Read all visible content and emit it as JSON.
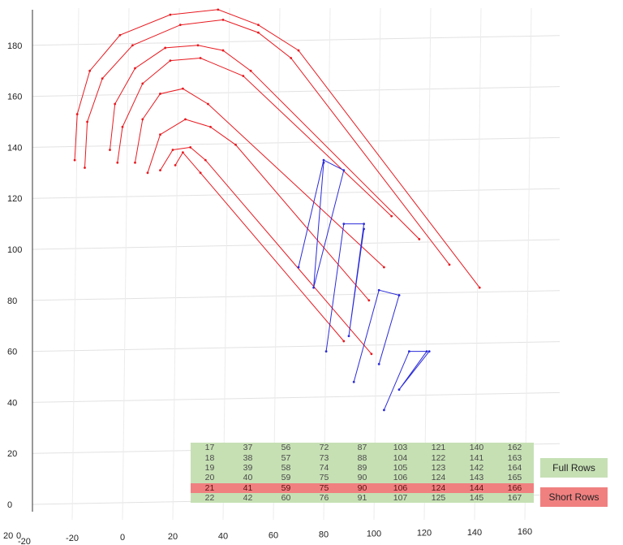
{
  "chart_data": {
    "type": "line",
    "y_ticks": [
      0,
      20,
      40,
      60,
      80,
      100,
      120,
      140,
      160,
      180
    ],
    "x_ticks": [
      -20,
      0,
      20,
      40,
      60,
      80,
      100,
      120,
      140,
      160
    ],
    "corner_labels": [
      "20",
      "0",
      "-20"
    ],
    "grid": true,
    "series": [
      {
        "color": "#e8191f",
        "points": [
          [
            -19,
            135
          ],
          [
            -18,
            153
          ],
          [
            -13,
            170
          ],
          [
            -1,
            184
          ],
          [
            19,
            192
          ],
          [
            38,
            194
          ],
          [
            54,
            188
          ],
          [
            70,
            178
          ],
          [
            142,
            85
          ]
        ]
      },
      {
        "color": "#e8191f",
        "points": [
          [
            -15,
            132
          ],
          [
            -14,
            150
          ],
          [
            -8,
            167
          ],
          [
            4,
            180
          ],
          [
            23,
            188
          ],
          [
            40,
            190
          ],
          [
            54,
            185
          ],
          [
            67,
            175
          ],
          [
            130,
            94
          ]
        ]
      },
      {
        "color": "#e8191f",
        "points": [
          [
            -5,
            139
          ],
          [
            -3,
            157
          ],
          [
            5,
            171
          ],
          [
            17,
            179
          ],
          [
            30,
            180
          ],
          [
            40,
            178
          ],
          [
            51,
            170
          ],
          [
            118,
            104
          ]
        ]
      },
      {
        "color": "#e8191f",
        "points": [
          [
            -2,
            134
          ],
          [
            0,
            148
          ],
          [
            8,
            165
          ],
          [
            19,
            174
          ],
          [
            31,
            175
          ],
          [
            48,
            168
          ],
          [
            107,
            113
          ]
        ]
      },
      {
        "color": "#e8191f",
        "points": [
          [
            5,
            134
          ],
          [
            8,
            151
          ],
          [
            15,
            161
          ],
          [
            24,
            163
          ],
          [
            34,
            157
          ],
          [
            104,
            93
          ]
        ]
      },
      {
        "color": "#e8191f",
        "points": [
          [
            10,
            130
          ],
          [
            15,
            145
          ],
          [
            25,
            151
          ],
          [
            35,
            148
          ],
          [
            45,
            141
          ],
          [
            98,
            80
          ]
        ]
      },
      {
        "color": "#e8191f",
        "points": [
          [
            15,
            131
          ],
          [
            20,
            139
          ],
          [
            27,
            140
          ],
          [
            33,
            135
          ],
          [
            99,
            59
          ]
        ]
      },
      {
        "color": "#e8191f",
        "points": [
          [
            21,
            133
          ],
          [
            24,
            138
          ],
          [
            31,
            130
          ],
          [
            88,
            64
          ]
        ]
      },
      {
        "color": "#2b2bd9",
        "points": [
          [
            70,
            93
          ],
          [
            80,
            135
          ],
          [
            88,
            131
          ],
          [
            76,
            85
          ],
          [
            80,
            134
          ]
        ]
      },
      {
        "color": "#2b2bd9",
        "points": [
          [
            81,
            60
          ],
          [
            88,
            110
          ],
          [
            96,
            110
          ],
          [
            90,
            66
          ],
          [
            96,
            108
          ]
        ]
      },
      {
        "color": "#2b2bd9",
        "points": [
          [
            92,
            48
          ],
          [
            102,
            84
          ],
          [
            110,
            82
          ],
          [
            102,
            55
          ],
          [
            110,
            82
          ]
        ]
      },
      {
        "color": "#2b2bd9",
        "points": [
          [
            104,
            37
          ],
          [
            114,
            60
          ],
          [
            121,
            60
          ],
          [
            110,
            45
          ],
          [
            122,
            60
          ]
        ]
      }
    ],
    "table": {
      "rows": [
        {
          "status": "full",
          "cells": [
            "17",
            "37",
            "56",
            "72",
            "87",
            "103",
            "121",
            "140",
            "162"
          ]
        },
        {
          "status": "full",
          "cells": [
            "18",
            "38",
            "57",
            "73",
            "88",
            "104",
            "122",
            "141",
            "163"
          ]
        },
        {
          "status": "full",
          "cells": [
            "19",
            "39",
            "58",
            "74",
            "89",
            "105",
            "123",
            "142",
            "164"
          ]
        },
        {
          "status": "full",
          "cells": [
            "20",
            "40",
            "59",
            "75",
            "90",
            "106",
            "124",
            "143",
            "165"
          ]
        },
        {
          "status": "short",
          "cells": [
            "21",
            "41",
            "59",
            "75",
            "90",
            "106",
            "124",
            "144",
            "166"
          ]
        },
        {
          "status": "full",
          "cells": [
            "22",
            "42",
            "60",
            "76",
            "91",
            "107",
            "125",
            "145",
            "167"
          ]
        }
      ]
    },
    "legend": {
      "full_label": "Full Rows",
      "short_label": "Short Rows",
      "full_color": "#c6e0b4",
      "short_color": "#f08080"
    }
  }
}
